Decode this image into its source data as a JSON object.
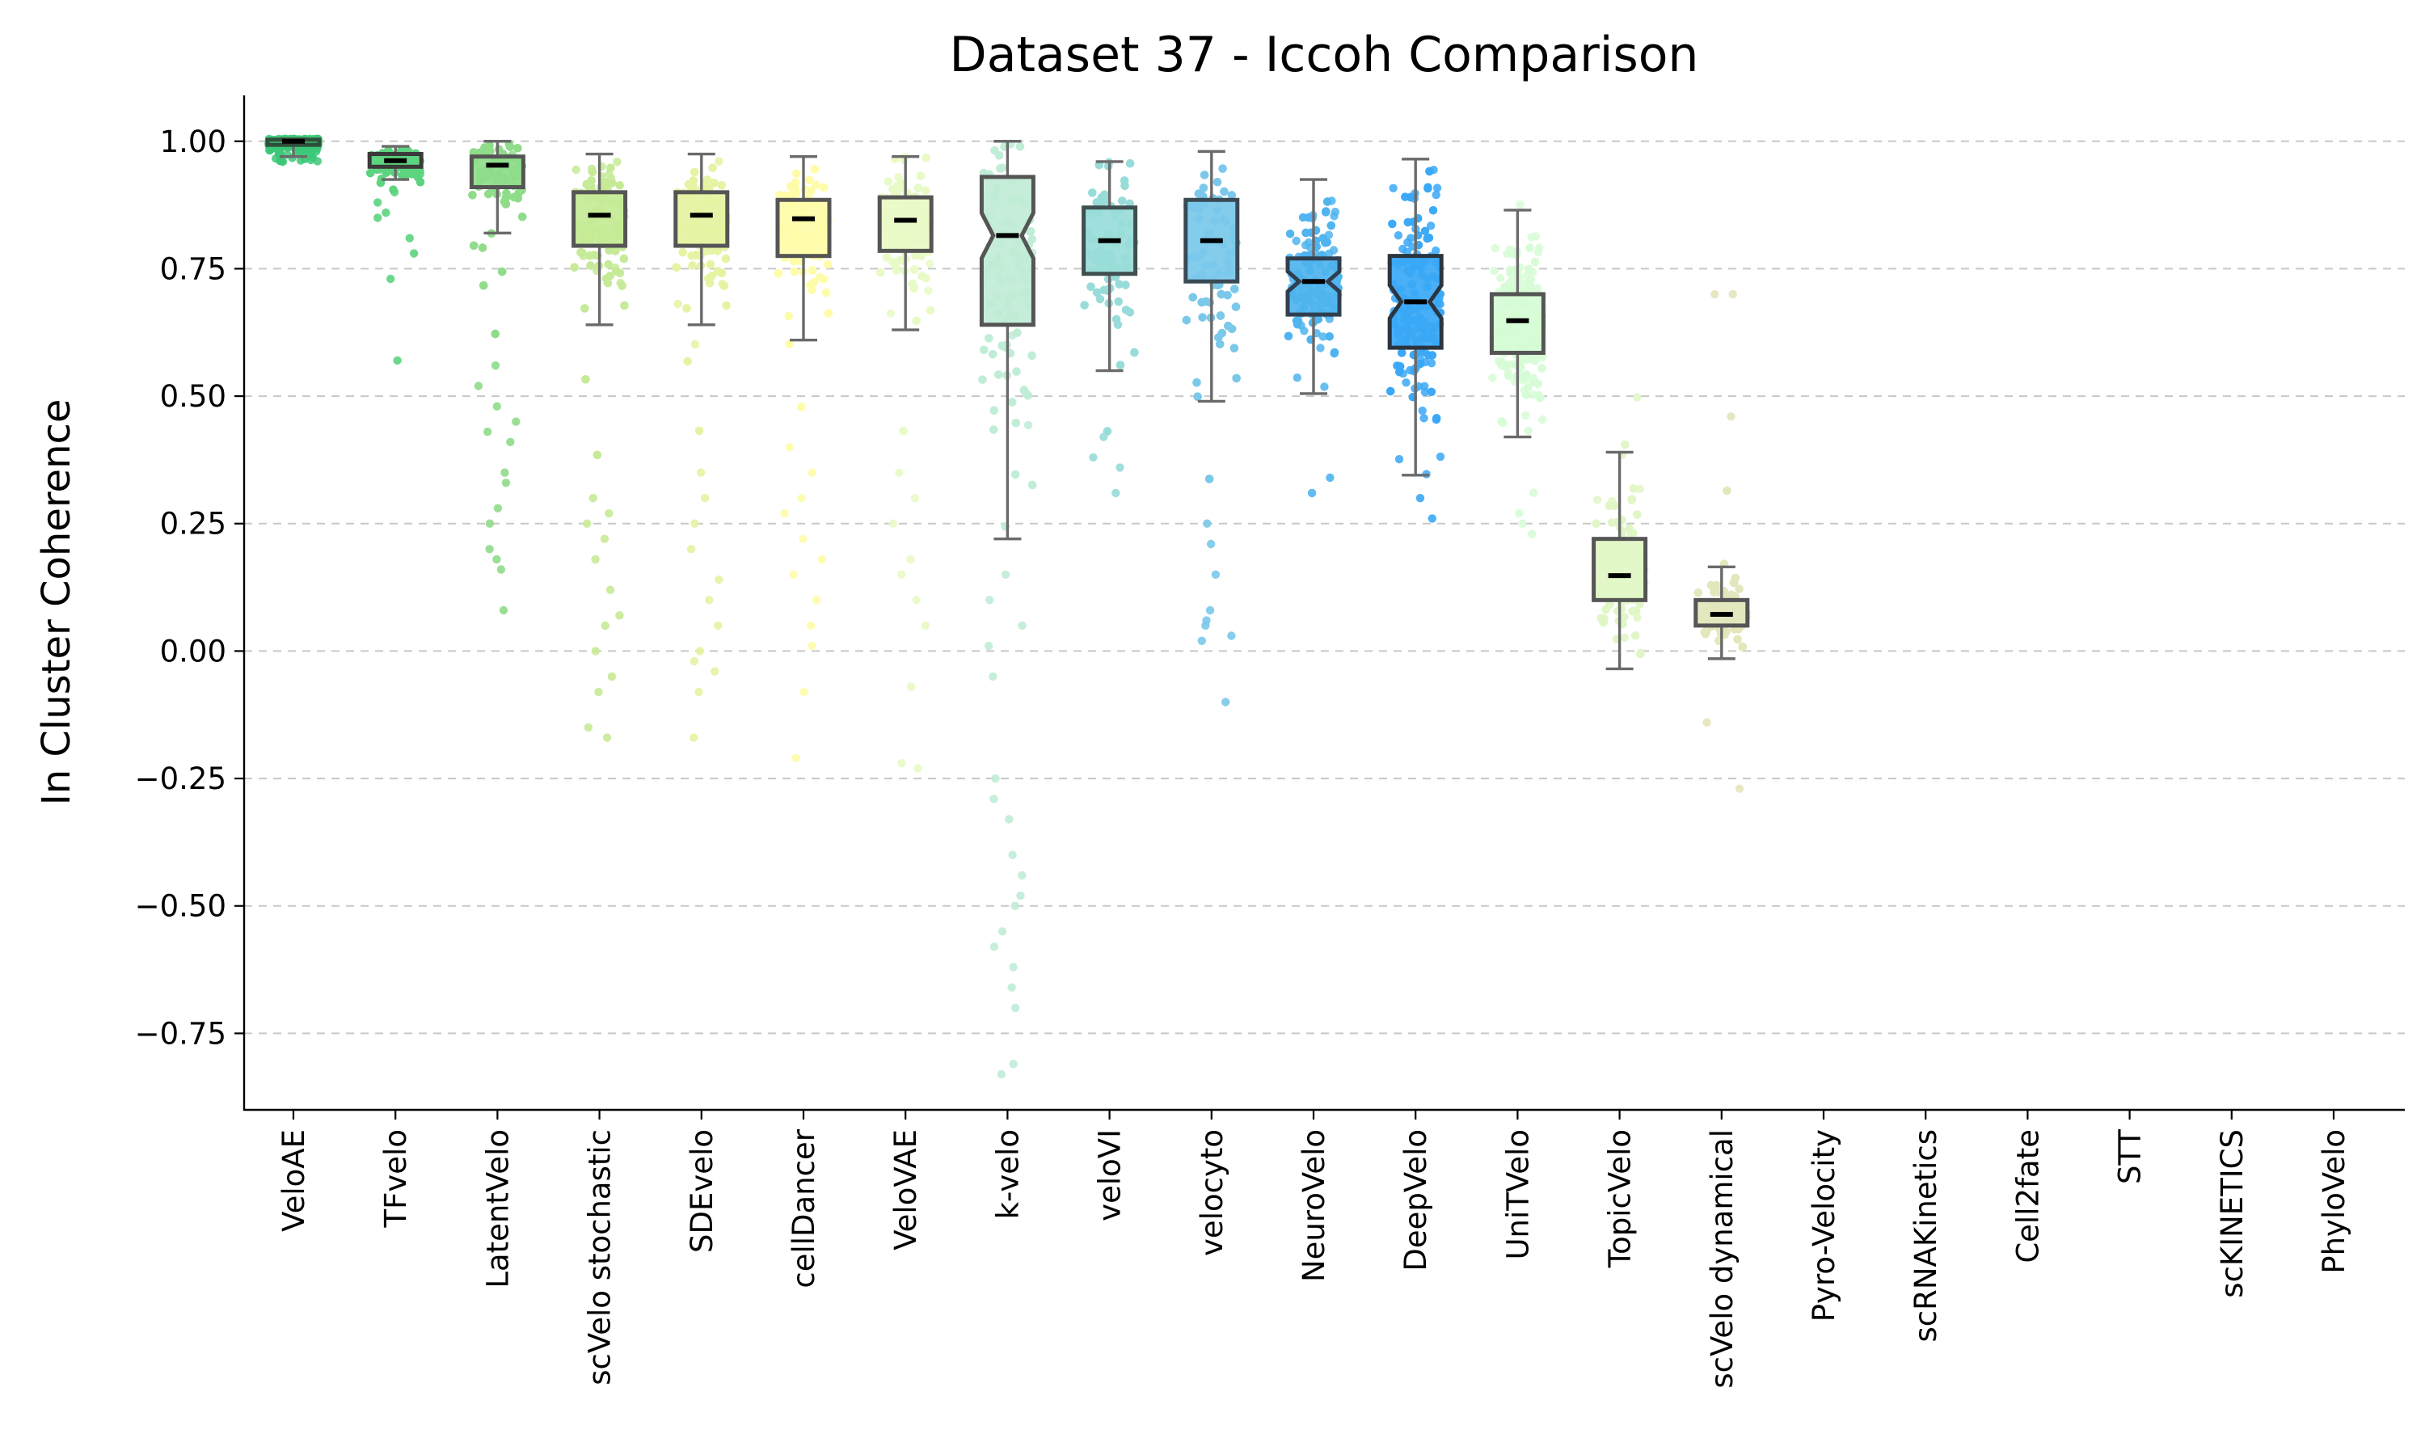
{
  "chart_data": {
    "type": "box",
    "title": "Dataset 37 - Iccoh Comparison",
    "xlabel": "",
    "ylabel": "In Cluster Coherence",
    "ylim": [
      -0.9,
      1.09
    ],
    "yticks": [
      1.0,
      0.75,
      0.5,
      0.25,
      0.0,
      -0.25,
      -0.5,
      -0.75
    ],
    "ytick_labels": [
      "1.00",
      "0.75",
      "0.50",
      "0.25",
      "0.00",
      "−0.25",
      "−0.50",
      "−0.75"
    ],
    "grid": true,
    "categories": [
      "VeloAE",
      "TFvelo",
      "LatentVelo",
      "scVelo stochastic",
      "SDEvelo",
      "cellDancer",
      "VeloVAE",
      "k-velo",
      "veloVI",
      "velocyto",
      "NeuroVelo",
      "DeepVelo",
      "UniTVelo",
      "TopicVelo",
      "scVelo dynamical",
      "Pyro-Velocity",
      "scRNAKinetics",
      "Cell2fate",
      "STT",
      "scKINETICS",
      "PhyloVelo"
    ],
    "series": [
      {
        "name": "VeloAE",
        "color": "#3cc878",
        "edge": "#2f4f3a",
        "min": 0.97,
        "q1": 0.993,
        "median": 1.0,
        "q3": 1.003,
        "max": 1.005,
        "point_min": 0.96,
        "point_max": 1.005,
        "outliers": [
          0.965,
          0.97,
          0.975,
          0.98
        ]
      },
      {
        "name": "TFvelo",
        "color": "#5dd47f",
        "edge": "#3a3a3a",
        "min": 0.925,
        "q1": 0.95,
        "median": 0.962,
        "q3": 0.975,
        "max": 0.99,
        "point_min": 0.9,
        "point_max": 0.99,
        "outliers": [
          0.57,
          0.73,
          0.78,
          0.81,
          0.85,
          0.86,
          0.88,
          0.9
        ]
      },
      {
        "name": "LatentVelo",
        "color": "#8fdc8a",
        "edge": "#555555",
        "min": 0.82,
        "q1": 0.91,
        "median": 0.953,
        "q3": 0.97,
        "max": 1.0,
        "point_min": 0.6,
        "point_max": 1.0,
        "outliers": [
          0.08,
          0.16,
          0.18,
          0.2,
          0.25,
          0.28,
          0.33,
          0.35,
          0.41,
          0.43,
          0.45,
          0.48,
          0.52,
          0.56
        ]
      },
      {
        "name": "scVelo stochastic",
        "color": "#c6ea96",
        "edge": "#555555",
        "min": 0.64,
        "q1": 0.795,
        "median": 0.855,
        "q3": 0.9,
        "max": 0.975,
        "point_min": 0.35,
        "point_max": 0.975,
        "outliers": [
          -0.17,
          -0.15,
          -0.08,
          -0.05,
          0.0,
          0.05,
          0.07,
          0.12,
          0.18,
          0.22,
          0.25,
          0.27,
          0.3
        ]
      },
      {
        "name": "SDEvelo",
        "color": "#e4f3a2",
        "edge": "#555555",
        "min": 0.64,
        "q1": 0.795,
        "median": 0.855,
        "q3": 0.9,
        "max": 0.975,
        "point_min": 0.4,
        "point_max": 0.975,
        "outliers": [
          -0.17,
          -0.08,
          -0.04,
          -0.02,
          0.0,
          0.05,
          0.1,
          0.14,
          0.2,
          0.25,
          0.3,
          0.35
        ]
      },
      {
        "name": "cellDancer",
        "color": "#fefca8",
        "edge": "#555555",
        "min": 0.61,
        "q1": 0.775,
        "median": 0.848,
        "q3": 0.885,
        "max": 0.97,
        "point_min": 0.45,
        "point_max": 0.97,
        "outliers": [
          -0.21,
          -0.08,
          0.01,
          0.05,
          0.1,
          0.15,
          0.18,
          0.22,
          0.27,
          0.3,
          0.35,
          0.4
        ]
      },
      {
        "name": "VeloVAE",
        "color": "#e8fac5",
        "edge": "#555555",
        "min": 0.63,
        "q1": 0.785,
        "median": 0.845,
        "q3": 0.89,
        "max": 0.97,
        "point_min": 0.4,
        "point_max": 0.97,
        "outliers": [
          -0.23,
          -0.22,
          -0.07,
          0.05,
          0.1,
          0.15,
          0.18,
          0.25,
          0.3,
          0.35
        ]
      },
      {
        "name": "k-velo",
        "color": "#c0ecd6",
        "edge": "#555555",
        "min": 0.22,
        "q1": 0.64,
        "median": 0.815,
        "q3": 0.93,
        "max": 1.0,
        "point_min": 0.2,
        "point_max": 1.0,
        "notched": true,
        "outliers": [
          -0.83,
          -0.81,
          -0.7,
          -0.66,
          -0.62,
          -0.58,
          -0.55,
          -0.5,
          -0.48,
          -0.44,
          -0.4,
          -0.33,
          -0.29,
          -0.25,
          -0.05,
          0.01,
          0.05,
          0.1,
          0.15
        ]
      },
      {
        "name": "veloVI",
        "color": "#98dcd8",
        "edge": "#3f4f4f",
        "min": 0.55,
        "q1": 0.74,
        "median": 0.805,
        "q3": 0.87,
        "max": 0.96,
        "point_min": 0.4,
        "point_max": 0.96,
        "outliers": [
          0.31,
          0.36,
          0.38,
          0.42
        ]
      },
      {
        "name": "velocyto",
        "color": "#7ac8ea",
        "edge": "#3a4a55",
        "min": 0.49,
        "q1": 0.725,
        "median": 0.805,
        "q3": 0.885,
        "max": 0.98,
        "point_min": 0.3,
        "point_max": 0.98,
        "outliers": [
          -0.1,
          0.02,
          0.03,
          0.05,
          0.06,
          0.08,
          0.15,
          0.21,
          0.25
        ]
      },
      {
        "name": "NeuroVelo",
        "color": "#4fb4ee",
        "edge": "#2f3f4f",
        "min": 0.505,
        "q1": 0.66,
        "median": 0.725,
        "q3": 0.77,
        "max": 0.925,
        "point_min": 0.33,
        "point_max": 0.935,
        "notched": true,
        "outliers": [
          0.31,
          0.34
        ]
      },
      {
        "name": "DeepVelo",
        "color": "#3aa8f6",
        "edge": "#2a3540",
        "min": 0.345,
        "q1": 0.595,
        "median": 0.685,
        "q3": 0.775,
        "max": 0.965,
        "point_min": 0.3,
        "point_max": 0.965,
        "notched": true,
        "outliers": [
          0.26,
          0.3
        ]
      },
      {
        "name": "UniTVelo",
        "color": "#d6fcd6",
        "edge": "#555555",
        "min": 0.42,
        "q1": 0.585,
        "median": 0.648,
        "q3": 0.7,
        "max": 0.865,
        "point_min": 0.3,
        "point_max": 0.91,
        "outliers": [
          0.23,
          0.25,
          0.27
        ]
      },
      {
        "name": "TopicVelo",
        "color": "#e1f6c6",
        "edge": "#555555",
        "min": -0.035,
        "q1": 0.1,
        "median": 0.148,
        "q3": 0.22,
        "max": 0.39,
        "point_min": -0.03,
        "point_max": 0.5,
        "outliers": []
      },
      {
        "name": "scVelo dynamical",
        "color": "#e4e6bc",
        "edge": "#555555",
        "min": -0.015,
        "q1": 0.05,
        "median": 0.072,
        "q3": 0.1,
        "max": 0.165,
        "point_min": -0.03,
        "point_max": 0.39,
        "outliers": [
          -0.27,
          -0.14,
          0.46,
          0.7,
          0.7
        ]
      },
      {
        "name": "Pyro-Velocity"
      },
      {
        "name": "scRNAKinetics"
      },
      {
        "name": "Cell2fate"
      },
      {
        "name": "STT"
      },
      {
        "name": "scKINETICS"
      },
      {
        "name": "PhyloVelo"
      }
    ]
  }
}
